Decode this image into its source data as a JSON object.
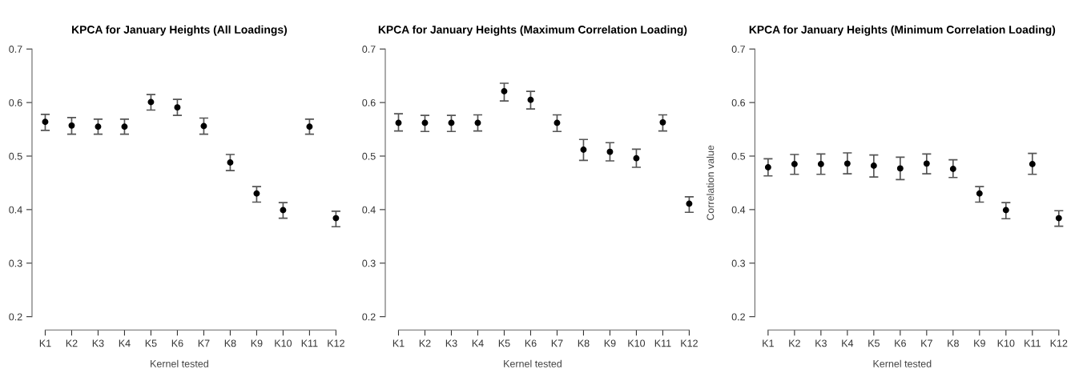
{
  "chart_data": [
    {
      "type": "scatter",
      "title": "KPCA for January Heights (All Loadings)",
      "xlabel": "Kernel tested",
      "categories": [
        "K1",
        "K2",
        "K3",
        "K4",
        "K5",
        "K6",
        "K7",
        "K8",
        "K9",
        "K10",
        "K11",
        "K12"
      ],
      "series": [
        {
          "color": "#000000",
          "values": [
            0.564,
            0.557,
            0.555,
            0.555,
            0.601,
            0.591,
            0.556,
            0.488,
            0.43,
            0.399,
            0.555,
            0.384
          ],
          "errors": [
            [
              0.548,
              0.578
            ],
            [
              0.541,
              0.572
            ],
            [
              0.541,
              0.569
            ],
            [
              0.541,
              0.569
            ],
            [
              0.586,
              0.615
            ],
            [
              0.576,
              0.606
            ],
            [
              0.541,
              0.571
            ],
            [
              0.473,
              0.503
            ],
            [
              0.414,
              0.443
            ],
            [
              0.384,
              0.413
            ],
            [
              0.541,
              0.569
            ],
            [
              0.368,
              0.397
            ]
          ]
        }
      ],
      "ylim": [
        0.2,
        0.7
      ],
      "yticks": [
        0.2,
        0.3,
        0.4,
        0.5,
        0.6,
        0.7
      ],
      "marker": "circle"
    },
    {
      "type": "scatter",
      "title": "KPCA for January Heights (Maximum Correlation Loading)",
      "xlabel": "Kernel tested",
      "categories": [
        "K1",
        "K2",
        "K3",
        "K4",
        "K5",
        "K6",
        "K7",
        "K8",
        "K9",
        "K10",
        "K11",
        "K12"
      ],
      "series": [
        {
          "color": "#000000",
          "values": [
            0.562,
            0.562,
            0.562,
            0.562,
            0.621,
            0.605,
            0.562,
            0.512,
            0.508,
            0.496,
            0.563,
            0.411
          ],
          "errors": [
            [
              0.547,
              0.579
            ],
            [
              0.546,
              0.576
            ],
            [
              0.546,
              0.576
            ],
            [
              0.547,
              0.577
            ],
            [
              0.603,
              0.636
            ],
            [
              0.588,
              0.621
            ],
            [
              0.546,
              0.577
            ],
            [
              0.492,
              0.531
            ],
            [
              0.491,
              0.525
            ],
            [
              0.479,
              0.513
            ],
            [
              0.547,
              0.577
            ],
            [
              0.395,
              0.424
            ]
          ]
        }
      ],
      "ylim": [
        0.2,
        0.7
      ],
      "yticks": [
        0.2,
        0.3,
        0.4,
        0.5,
        0.6,
        0.7
      ],
      "marker": "circle"
    },
    {
      "type": "scatter",
      "title": "KPCA for January Heights (Minimum Correlation Loading)",
      "xlabel": "Kernel tested",
      "ylabel": "Correlation value",
      "categories": [
        "K1",
        "K2",
        "K3",
        "K4",
        "K5",
        "K6",
        "K7",
        "K8",
        "K9",
        "K10",
        "K11",
        "K12"
      ],
      "series": [
        {
          "color": "#000000",
          "values": [
            0.479,
            0.485,
            0.485,
            0.486,
            0.482,
            0.477,
            0.486,
            0.476,
            0.43,
            0.399,
            0.485,
            0.384
          ],
          "errors": [
            [
              0.463,
              0.495
            ],
            [
              0.466,
              0.503
            ],
            [
              0.466,
              0.504
            ],
            [
              0.467,
              0.506
            ],
            [
              0.461,
              0.502
            ],
            [
              0.456,
              0.498
            ],
            [
              0.467,
              0.504
            ],
            [
              0.46,
              0.493
            ],
            [
              0.414,
              0.443
            ],
            [
              0.383,
              0.413
            ],
            [
              0.466,
              0.505
            ],
            [
              0.369,
              0.398
            ]
          ]
        }
      ],
      "ylim": [
        0.2,
        0.7
      ],
      "yticks": [
        0.2,
        0.3,
        0.4,
        0.5,
        0.6,
        0.7
      ],
      "marker": "circle"
    }
  ]
}
